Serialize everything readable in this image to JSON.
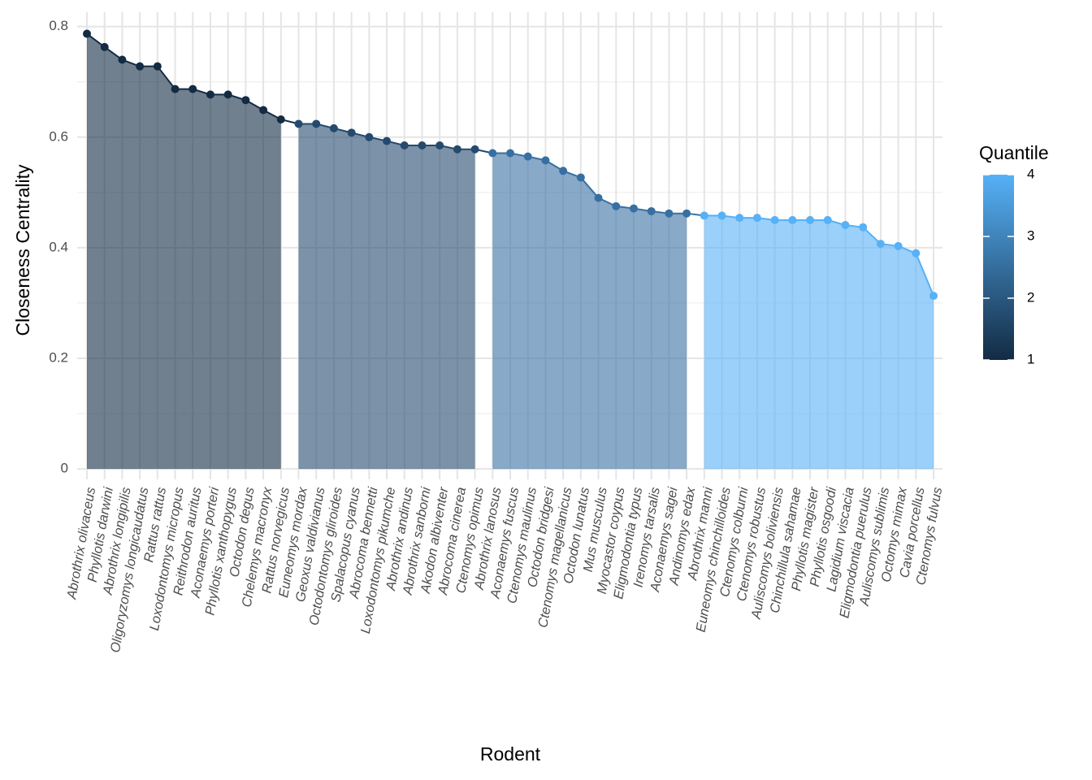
{
  "chart_data": {
    "type": "area_line",
    "x_label": "Rodent",
    "y_label": "Closeness Centrality",
    "legend_title": "Quantile",
    "legend_ticks": [
      1,
      2,
      3,
      4
    ],
    "legend_gradient": [
      "#132B43",
      "#56B1F7"
    ],
    "categories": [
      "Abrothrix olivaceus",
      "Phyllotis darwini",
      "Abrothrix longipilis",
      "Oligoryzomys longicaudatus",
      "Rattus rattus",
      "Loxodontomys micropus",
      "Reithrodon auritus",
      "Aconaemys porteri",
      "Phyllotis xanthopygus",
      "Octodon degus",
      "Chelemys macronyx",
      "Rattus norvegicus",
      "Euneomys mordax",
      "Geoxus valdivianus",
      "Octodontomys gliroides",
      "Spalacopus cyanus",
      "Abrocoma bennetti",
      "Loxodontomys pikumche",
      "Abrothrix andinus",
      "Abrothrix sanborni",
      "Akodon albiventer",
      "Abrocoma cinerea",
      "Ctenomys opimus",
      "Abrothrix lanosus",
      "Aconaemys fuscus",
      "Ctenomys maulinus",
      "Octodon bridgesi",
      "Ctenomys magellanicus",
      "Octodon lunatus",
      "Mus musculus",
      "Myocastor coypus",
      "Eligmodontia typus",
      "Irenomys tarsalis",
      "Aconaemys sagei",
      "Andinomys edax",
      "Abrothrix manni",
      "Euneomys chinchilloides",
      "Ctenomys colburni",
      "Ctenomys robustus",
      "Auliscomys boliviensis",
      "Chinchillula sahamae",
      "Phyllotis magister",
      "Phyllotis osgoodi",
      "Lagidium viscacia",
      "Eligmodontia puerulus",
      "Auliscomys sublimis",
      "Octomys mimax",
      "Cavia porcellus",
      "Ctenomys fulvus"
    ],
    "series": [
      {
        "color": "#132B43",
        "values": [
          0.787,
          0.763,
          0.74,
          0.728,
          0.728,
          0.687,
          0.687,
          0.677,
          0.677,
          0.667,
          0.649,
          0.632,
          null,
          null,
          null,
          null,
          null,
          null,
          null,
          null,
          null,
          null,
          null,
          null,
          null,
          null,
          null,
          null,
          null,
          null,
          null,
          null,
          null,
          null,
          null,
          null,
          null,
          null,
          null,
          null,
          null,
          null,
          null,
          null,
          null,
          null,
          null,
          null,
          null
        ]
      },
      {
        "color": "#244A6E",
        "values": [
          null,
          null,
          null,
          null,
          null,
          null,
          null,
          null,
          null,
          null,
          null,
          null,
          0.624,
          0.624,
          0.616,
          0.608,
          0.6,
          0.593,
          0.585,
          0.585,
          0.585,
          0.578,
          0.578,
          null,
          null,
          null,
          null,
          null,
          null,
          null,
          null,
          null,
          null,
          null,
          null,
          null,
          null,
          null,
          null,
          null,
          null,
          null,
          null,
          null,
          null,
          null,
          null,
          null,
          null
        ]
      },
      {
        "color": "#386FA2",
        "values": [
          null,
          null,
          null,
          null,
          null,
          null,
          null,
          null,
          null,
          null,
          null,
          null,
          null,
          null,
          null,
          null,
          null,
          null,
          null,
          null,
          null,
          null,
          null,
          0.571,
          0.571,
          0.565,
          0.558,
          0.539,
          0.527,
          0.49,
          0.475,
          0.471,
          0.466,
          0.462,
          0.462,
          null,
          null,
          null,
          null,
          null,
          null,
          null,
          null,
          null,
          null,
          null,
          null,
          null,
          null
        ]
      },
      {
        "color": "#56B1F7",
        "values": [
          null,
          null,
          null,
          null,
          null,
          null,
          null,
          null,
          null,
          null,
          null,
          null,
          null,
          null,
          null,
          null,
          null,
          null,
          null,
          null,
          null,
          null,
          null,
          null,
          null,
          null,
          null,
          null,
          null,
          null,
          null,
          null,
          null,
          null,
          null,
          0.458,
          0.458,
          0.454,
          0.454,
          0.45,
          0.45,
          0.45,
          0.45,
          0.441,
          0.437,
          0.407,
          0.403,
          0.39,
          0.313
        ]
      }
    ],
    "ylim": [
      -0.019,
      0.826
    ],
    "yticks": [
      0.0,
      0.2,
      0.4,
      0.6,
      0.8
    ],
    "grid": true,
    "area_opacity": 0.6
  }
}
